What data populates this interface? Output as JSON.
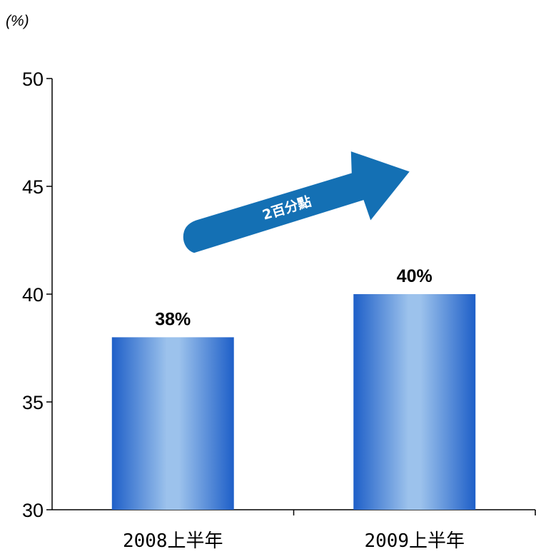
{
  "chart_data": {
    "type": "bar",
    "unit_label": "(%)",
    "categories": [
      "2008上半年",
      "2009上半年"
    ],
    "values": [
      38,
      40
    ],
    "data_labels": [
      "38%",
      "40%"
    ],
    "ylim": [
      30,
      50
    ],
    "yticks": [
      30,
      35,
      40,
      45,
      50
    ],
    "grid": false,
    "legend": "none",
    "annotation": {
      "text": "2百分點",
      "shape": "arrow",
      "color": "#1470b4"
    },
    "bar_gradient": [
      "#1e5fc8",
      "#9cc2ec"
    ]
  }
}
